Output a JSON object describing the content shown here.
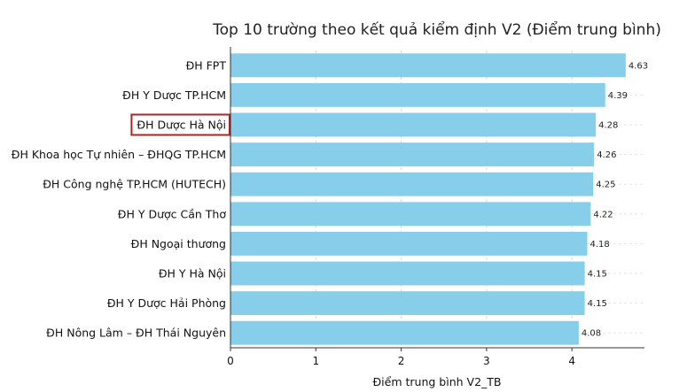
{
  "chart_data": {
    "type": "bar",
    "orientation": "horizontal",
    "title": "Top 10 trường theo kết quả kiểm định V2 (Điểm trung bình)",
    "xlabel": "Điểm trung bình V2_TB",
    "ylabel": "",
    "xlim": [
      0,
      4.85
    ],
    "xticks": [
      0,
      1,
      2,
      3,
      4
    ],
    "grid": "x-dashed",
    "bar_color": "#87CEEB",
    "highlight_color": "#B22222",
    "highlighted_category": "ĐH Dược Hà Nội",
    "categories": [
      "ĐH FPT",
      "ĐH Y Dược TP.HCM",
      "ĐH Dược Hà Nội",
      "ĐH Khoa học Tự nhiên – ĐHQG TP.HCM",
      "ĐH Công nghệ TP.HCM (HUTECH)",
      "ĐH Y Dược Cần Thơ",
      "ĐH Ngoại thương",
      "ĐH Y Hà Nội",
      "ĐH Y Dược Hải Phòng",
      "ĐH Nông Lâm – ĐH Thái Nguyên"
    ],
    "values": [
      4.63,
      4.39,
      4.28,
      4.26,
      4.25,
      4.22,
      4.18,
      4.15,
      4.15,
      4.08
    ],
    "value_labels": [
      "4.63",
      "4.39",
      "4.28",
      "4.26",
      "4.25",
      "4.22",
      "4.18",
      "4.15",
      "4.15",
      "4.08"
    ]
  }
}
